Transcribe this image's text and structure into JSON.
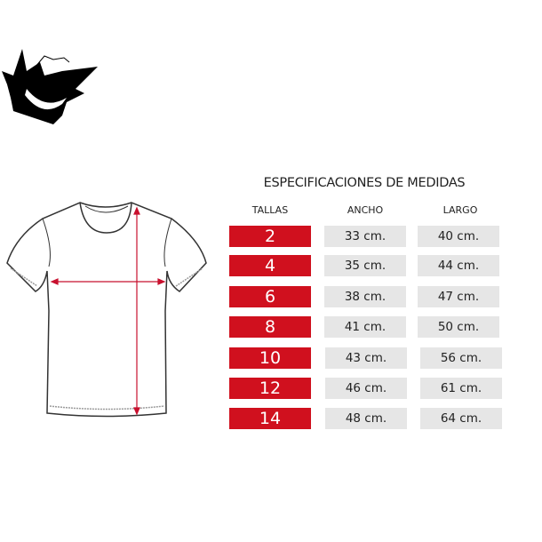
{
  "title": "ESPECIFICACIONES DE MEDIDAS",
  "headers": {
    "size": "TALLAS",
    "width": "ANCHO",
    "length": "LARGO"
  },
  "rows": [
    {
      "size": "2",
      "width": "33 cm.",
      "length": "40 cm."
    },
    {
      "size": "4",
      "width": "35 cm.",
      "length": "44 cm."
    },
    {
      "size": "6",
      "width": "38 cm.",
      "length": "47 cm."
    },
    {
      "size": "8",
      "width": "41 cm.",
      "length": "50 cm."
    },
    {
      "size": "10",
      "width": "43 cm.",
      "length": "56 cm."
    },
    {
      "size": "12",
      "width": "46 cm.",
      "length": "61 cm."
    },
    {
      "size": "14",
      "width": "48 cm.",
      "length": "64 cm."
    }
  ],
  "colors": {
    "accent": "#d0101e",
    "cell_bg": "#e6e6e6",
    "arrow": "#c8102e"
  },
  "icons": {
    "logo": "ghost-grin-logo",
    "garment": "tshirt-outline"
  }
}
